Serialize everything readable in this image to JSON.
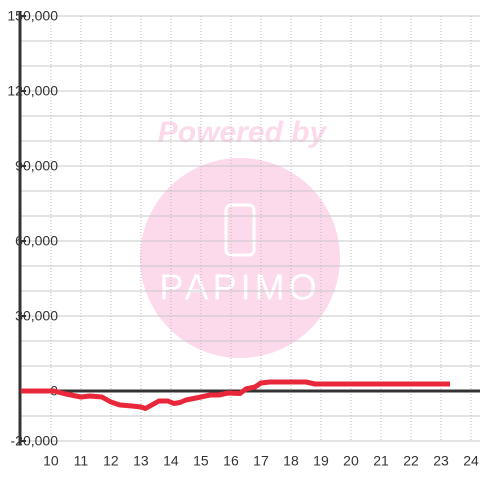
{
  "chart_data": {
    "type": "line",
    "watermark": {
      "line1": "Powered by",
      "line2": "PAPIMO"
    },
    "x": [
      9,
      10.1,
      10.5,
      11,
      11.3,
      11.7,
      12,
      12.3,
      12.7,
      13,
      13.15,
      13.3,
      13.6,
      13.9,
      14.1,
      14.3,
      14.5,
      15,
      15.3,
      15.6,
      15.9,
      16.3,
      16.5,
      16.8,
      17,
      17.3,
      18,
      18.5,
      18.8,
      19,
      20,
      21,
      22,
      23.3
    ],
    "series": [
      {
        "color": "#e8283a",
        "values": [
          0,
          0,
          -1200,
          -2400,
          -2000,
          -2400,
          -4400,
          -5600,
          -6000,
          -6400,
          -7000,
          -6000,
          -4000,
          -4000,
          -5000,
          -4600,
          -3600,
          -2400,
          -1600,
          -1600,
          -800,
          -1000,
          800,
          1600,
          3200,
          3600,
          3600,
          3600,
          2800,
          2800,
          2800,
          2800,
          2800,
          2800
        ]
      }
    ],
    "xlim": [
      8.97,
      24.3
    ],
    "xticks": [
      10,
      11,
      12,
      13,
      14,
      15,
      16,
      17,
      18,
      19,
      20,
      21,
      22,
      23,
      24
    ],
    "ylim": [
      -20000,
      150000
    ],
    "yticks": [
      {
        "value": -20000,
        "label": "-20,000"
      },
      {
        "value": 0,
        "label": "0"
      },
      {
        "value": 30000,
        "label": "30,000"
      },
      {
        "value": 60000,
        "label": "60,000"
      },
      {
        "value": 90000,
        "label": "90,000"
      },
      {
        "value": 120000,
        "label": "120,000"
      },
      {
        "value": 150000,
        "label": "150,000"
      }
    ],
    "minor_yticks": [
      -10000,
      10000,
      20000,
      40000,
      50000,
      70000,
      80000,
      100000,
      110000,
      130000,
      140000
    ],
    "grid": true
  }
}
